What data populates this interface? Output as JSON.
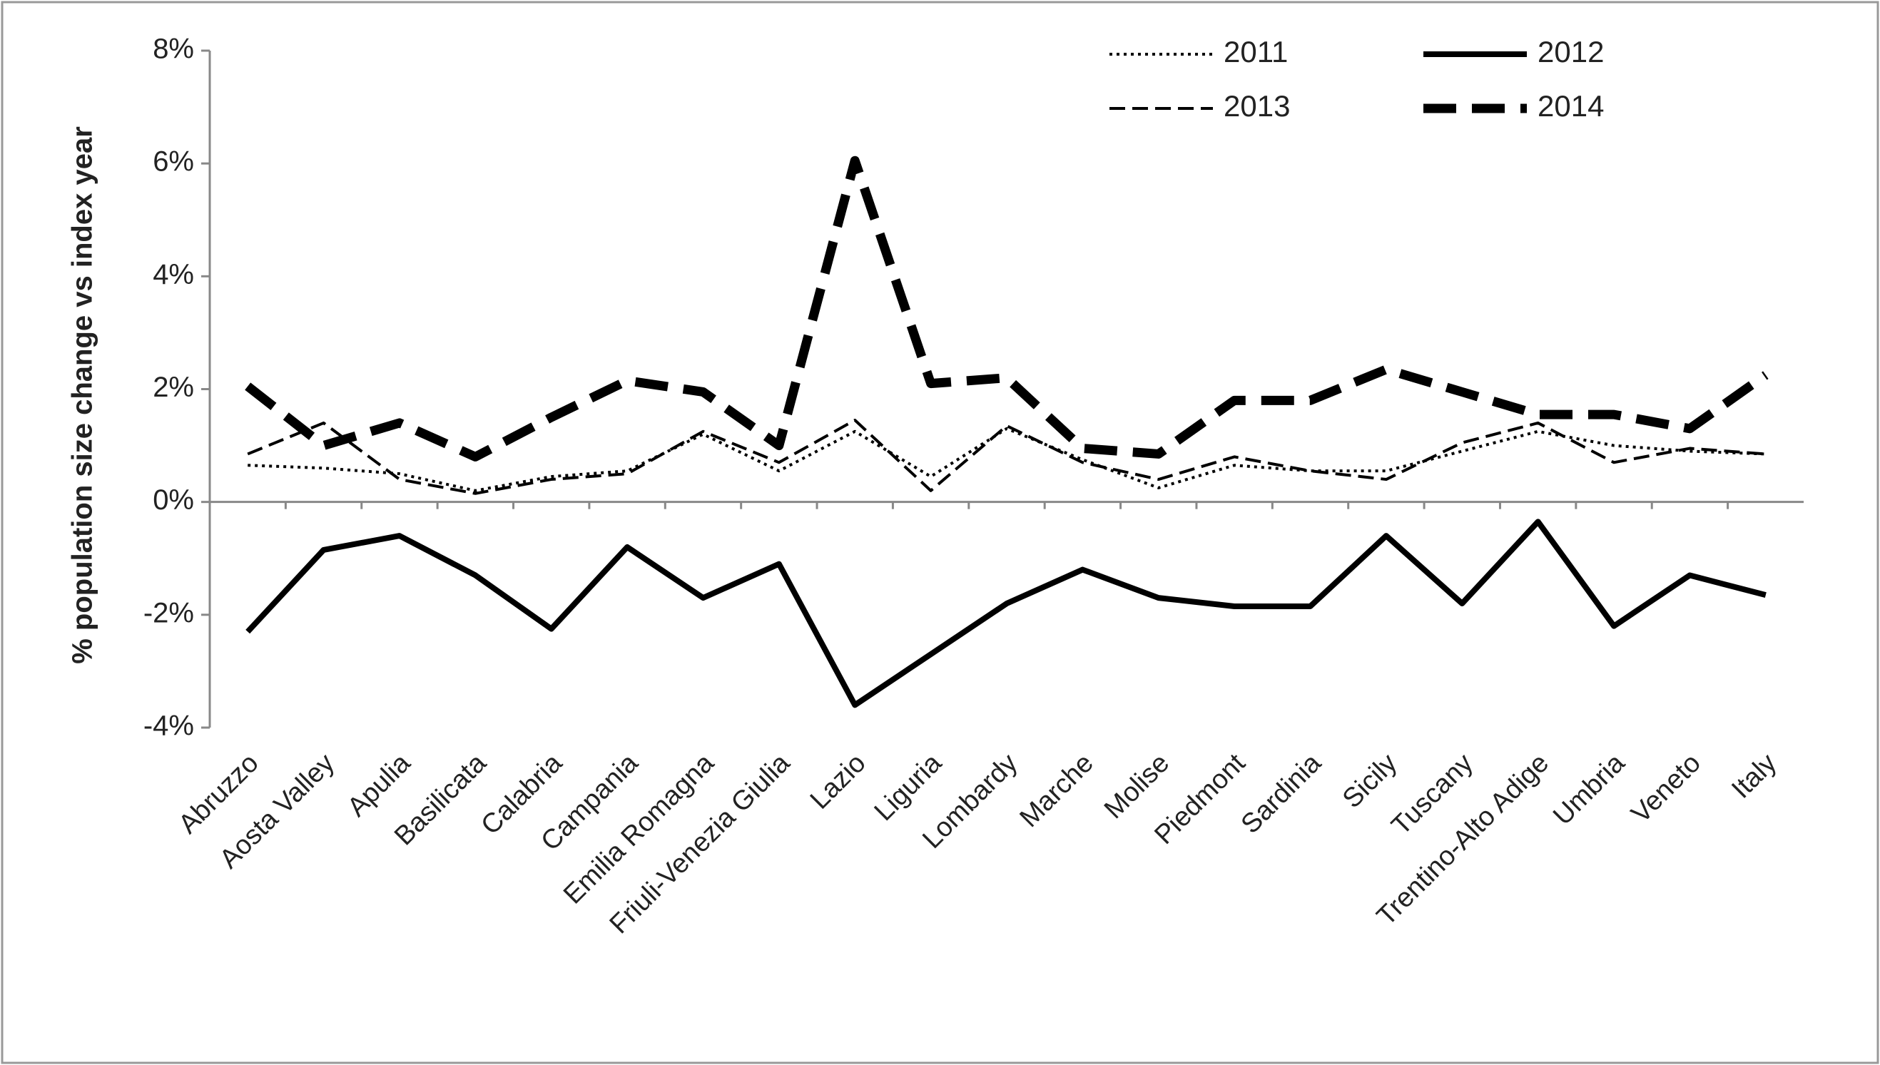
{
  "chart_data": {
    "type": "line",
    "y_label": "% population size change vs index year",
    "categories": [
      "Abruzzo",
      "Aosta Valley",
      "Apulia",
      "Basilicata",
      "Calabria",
      "Campania",
      "Emilia Romagna",
      "Friuli-Venezia Giulia",
      "Lazio",
      "Liguria",
      "Lombardy",
      "Marche",
      "Molise",
      "Piedmont",
      "Sardinia",
      "Sicily",
      "Tuscany",
      "Trentino-Alto Adige",
      "Umbria",
      "Veneto",
      "Italy"
    ],
    "series": [
      {
        "name": "2011",
        "color": "#000000",
        "line_style": "dotted",
        "line_width": 4,
        "values": [
          0.65,
          0.6,
          0.5,
          0.2,
          0.45,
          0.55,
          1.2,
          0.55,
          1.25,
          0.45,
          1.3,
          0.75,
          0.25,
          0.65,
          0.55,
          0.55,
          0.9,
          1.25,
          1.0,
          0.9,
          0.85
        ]
      },
      {
        "name": "2012",
        "color": "#000000",
        "line_style": "solid",
        "line_width": 8,
        "values": [
          -2.3,
          -0.85,
          -0.6,
          -1.3,
          -2.25,
          -0.8,
          -1.7,
          -1.1,
          -3.6,
          -2.7,
          -1.8,
          -1.2,
          -1.7,
          -1.85,
          -1.85,
          -0.6,
          -1.8,
          -0.35,
          -2.2,
          -1.3,
          -1.65
        ]
      },
      {
        "name": "2013",
        "color": "#000000",
        "line_style": "dashed",
        "line_width": 4,
        "values": [
          0.85,
          1.4,
          0.4,
          0.15,
          0.4,
          0.5,
          1.25,
          0.7,
          1.45,
          0.2,
          1.35,
          0.7,
          0.4,
          0.8,
          0.55,
          0.4,
          1.05,
          1.4,
          0.7,
          0.95,
          0.85
        ]
      },
      {
        "name": "2014",
        "color": "#000000",
        "line_style": "long-dashed",
        "line_width": 13,
        "values": [
          2.05,
          1.0,
          1.4,
          0.8,
          1.5,
          2.15,
          1.95,
          1.0,
          6.05,
          2.1,
          2.2,
          0.95,
          0.85,
          1.8,
          1.8,
          2.35,
          1.95,
          1.55,
          1.55,
          1.3,
          2.25
        ]
      }
    ],
    "ylim": [
      -4,
      8
    ],
    "yticks": [
      {
        "value": -4,
        "label": "-4%"
      },
      {
        "value": -2,
        "label": "-2%"
      },
      {
        "value": 0,
        "label": "0%"
      },
      {
        "value": 2,
        "label": "2%"
      },
      {
        "value": 4,
        "label": "4%"
      },
      {
        "value": 6,
        "label": "6%"
      },
      {
        "value": 8,
        "label": "8%"
      }
    ],
    "grid": false,
    "legend": "top-right"
  }
}
